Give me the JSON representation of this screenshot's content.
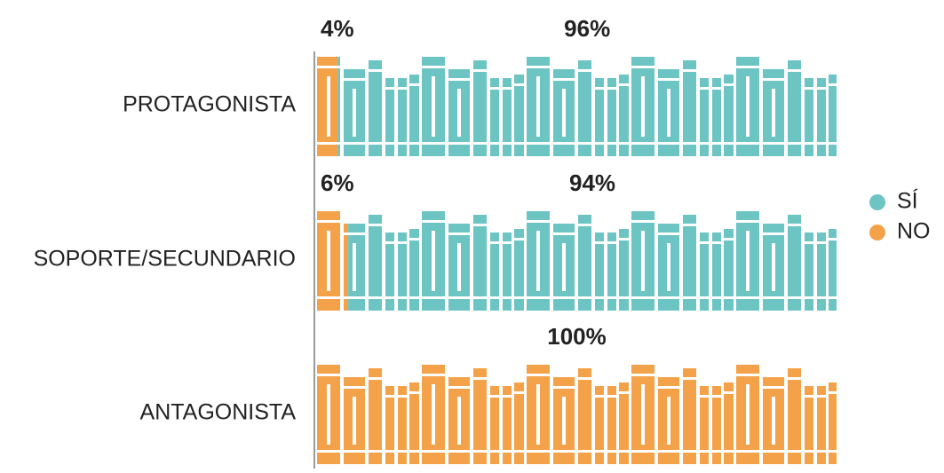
{
  "chart_data": {
    "type": "bar",
    "orientation": "horizontal",
    "stacked": true,
    "categories": [
      "PROTAGONISTA",
      "SOPORTE/SECUNDARIO",
      "ANTAGONISTA"
    ],
    "series": [
      {
        "name": "SÍ",
        "color": "#6cc4c3",
        "values": [
          96,
          94,
          0
        ],
        "value_labels": [
          "96%",
          "94%",
          null
        ]
      },
      {
        "name": "NO",
        "color": "#f4a24a",
        "values": [
          4,
          6,
          100
        ],
        "value_labels": [
          "4%",
          "6%",
          "100%"
        ]
      }
    ],
    "xlim": [
      0,
      100
    ],
    "legend": "right"
  }
}
